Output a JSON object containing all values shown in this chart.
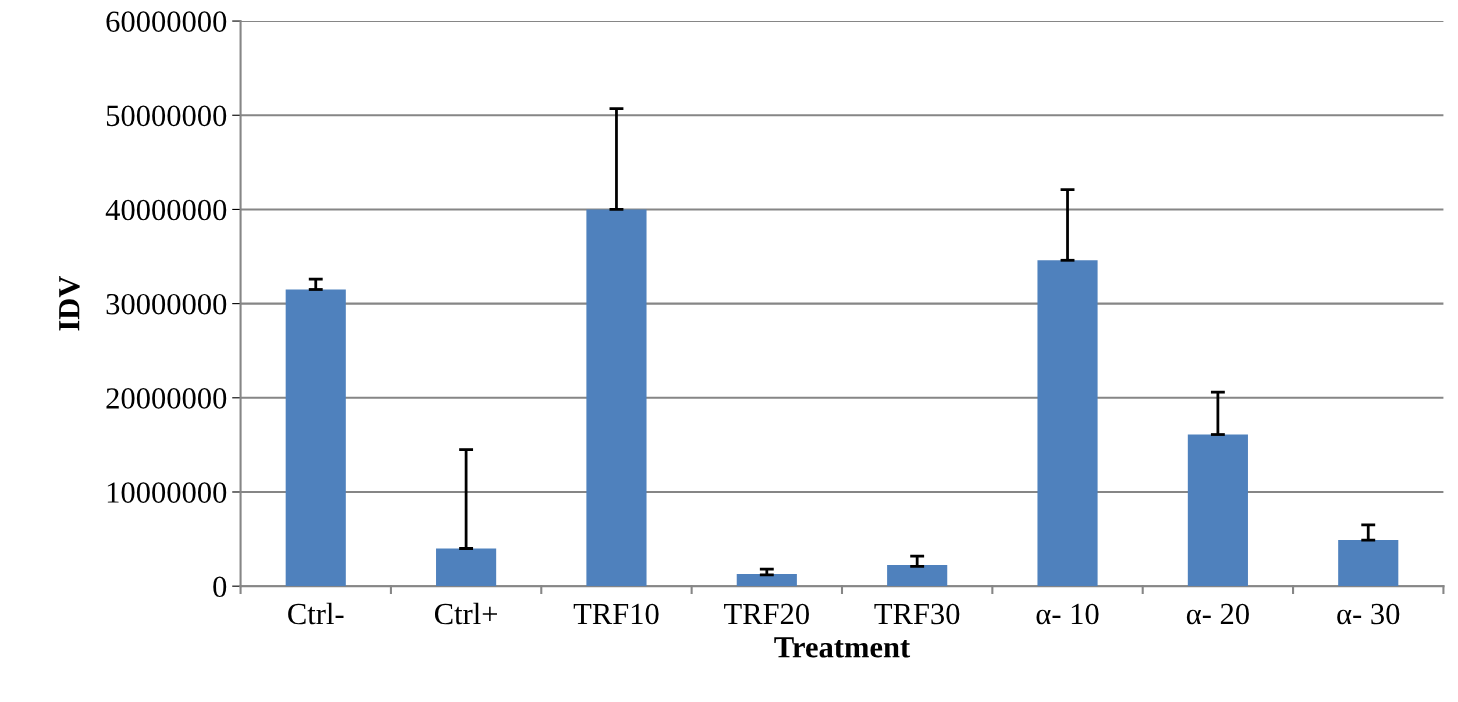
{
  "chart_data": {
    "type": "bar",
    "xlabel": "Treatment",
    "ylabel": "IDV",
    "categories": [
      "Ctrl-",
      "Ctrl+",
      "TRF10",
      "TRF20",
      "TRF30",
      "α- 10",
      "α- 20",
      "α- 30"
    ],
    "values": [
      31500000,
      4000000,
      40000000,
      1300000,
      2250000,
      34600000,
      16100000,
      4900000
    ],
    "errors": [
      [
        31500000,
        32600000
      ],
      [
        4000000,
        14500000
      ],
      [
        40000000,
        50700000
      ],
      [
        1200000,
        1800000
      ],
      [
        2100000,
        3200000
      ],
      [
        34600000,
        42100000
      ],
      [
        16100000,
        20600000
      ],
      [
        4900000,
        6500000
      ]
    ],
    "color": "#4f81bd",
    "ylim": [
      0,
      60000000
    ],
    "yticks": [
      0,
      10000000,
      20000000,
      30000000,
      40000000,
      50000000,
      60000000
    ],
    "grid": "y"
  }
}
